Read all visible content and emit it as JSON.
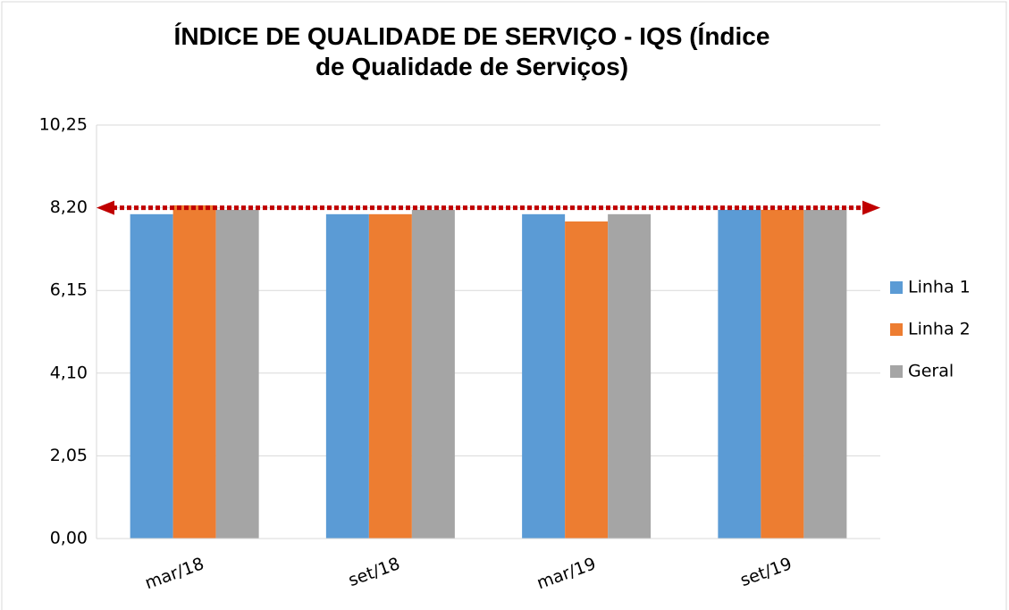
{
  "chart_data": {
    "type": "bar",
    "title": "ÍNDICE DE QUALIDADE DE SERVIÇO - IQS (Índice de Qualidade de Serviços)",
    "categories": [
      "mar/18",
      "set/18",
      "mar/19",
      "set/19"
    ],
    "series": [
      {
        "name": "Linha 1",
        "color": "#5b9bd5",
        "values": [
          8.04,
          8.04,
          8.04,
          8.15
        ]
      },
      {
        "name": "Linha 2",
        "color": "#ed7d31",
        "values": [
          8.26,
          8.04,
          7.86,
          8.15
        ]
      },
      {
        "name": "Geral",
        "color": "#a5a5a5",
        "values": [
          8.15,
          8.15,
          8.04,
          8.15
        ]
      }
    ],
    "ylim": [
      0,
      10.25
    ],
    "yticks": [
      {
        "value": 0,
        "label": "0,00"
      },
      {
        "value": 2.05,
        "label": "2,05"
      },
      {
        "value": 4.1,
        "label": "4,10"
      },
      {
        "value": 6.15,
        "label": "6,15"
      },
      {
        "value": 8.2,
        "label": "8,20"
      },
      {
        "value": 10.25,
        "label": "10,25"
      }
    ],
    "grid": true,
    "legend": "right",
    "reference_line": {
      "value": 8.2,
      "color": "#c00000"
    }
  }
}
